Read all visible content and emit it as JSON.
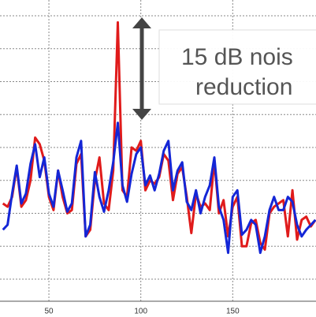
{
  "chart_data": {
    "type": "line",
    "annotations": [
      "15 dB nois",
      "reduction"
    ],
    "x": [
      25,
      27.5,
      30,
      32.5,
      35,
      37.5,
      40,
      42.5,
      45,
      47.5,
      50,
      52.5,
      55,
      57.5,
      60,
      62.5,
      65,
      67.5,
      70,
      72.5,
      75,
      77.5,
      80,
      82.5,
      85,
      87.5,
      90,
      92.5,
      95,
      97.5,
      100,
      102.5,
      105,
      107.5,
      110,
      112.5,
      115,
      117.5,
      120,
      122.5,
      125,
      127.5,
      130,
      132.5,
      135,
      137.5,
      140,
      142.5,
      145,
      147.5,
      150,
      152.5,
      155,
      157.5,
      160,
      162.5,
      165,
      167.5,
      170,
      172.5,
      175,
      177.5,
      180,
      182.5,
      185,
      187.5,
      190,
      192.5,
      195
    ],
    "series": [
      {
        "color": "#e01b1b",
        "values": [
          2.3,
          2.2,
          2.5,
          3.4,
          2.2,
          2.4,
          3.0,
          4.3,
          4.1,
          3.6,
          2.5,
          2.1,
          3.3,
          2.5,
          2.0,
          2.1,
          3.5,
          3.8,
          1.3,
          1.5,
          3.0,
          3.7,
          2.3,
          2.1,
          3.3,
          7.8,
          2.7,
          2.5,
          4.0,
          3.9,
          4.2,
          2.7,
          3.0,
          2.9,
          3.1,
          3.8,
          3.6,
          2.4,
          3.2,
          3.4,
          2.5,
          1.4,
          2.6,
          2.2,
          2.3,
          2.1,
          3.6,
          2.0,
          2.4,
          1.3,
          2.2,
          2.5,
          1.0,
          1.0,
          1.7,
          1.8,
          1.1,
          0.9,
          2.0,
          2.2,
          2.3,
          2.4,
          1.3,
          2.7,
          1.2,
          1.8,
          1.9,
          1.6,
          1.8
        ]
      },
      {
        "color": "#1426d6",
        "values": [
          1.5,
          1.65,
          2.6,
          3.45,
          2.3,
          2.6,
          3.5,
          4.1,
          3.1,
          3.7,
          2.6,
          2.2,
          3.3,
          2.7,
          2.05,
          2.3,
          3.7,
          4.2,
          1.3,
          1.65,
          3.25,
          2.5,
          2.05,
          2.7,
          3.55,
          4.75,
          2.85,
          2.35,
          3.2,
          3.8,
          4.0,
          2.85,
          3.15,
          2.7,
          3.2,
          3.9,
          4.2,
          2.7,
          3.3,
          3.55,
          2.35,
          2.1,
          2.7,
          2.0,
          2.5,
          2.85,
          3.7,
          2.2,
          1.8,
          0.8,
          2.5,
          2.7,
          1.35,
          1.5,
          1.8,
          1.65,
          0.8,
          1.3,
          2.1,
          2.5,
          2.1,
          2.1,
          2.5,
          2.35,
          1.65,
          1.3,
          1.5,
          1.65,
          1.8
        ]
      }
    ],
    "xlim": [
      23.4,
      195.3
    ],
    "xticks": [
      50,
      100,
      150
    ],
    "ylim": [
      -0.67,
      8.48
    ],
    "ygrid": [
      0,
      1,
      2,
      3,
      4,
      5,
      6,
      7,
      8
    ],
    "grid": true
  }
}
